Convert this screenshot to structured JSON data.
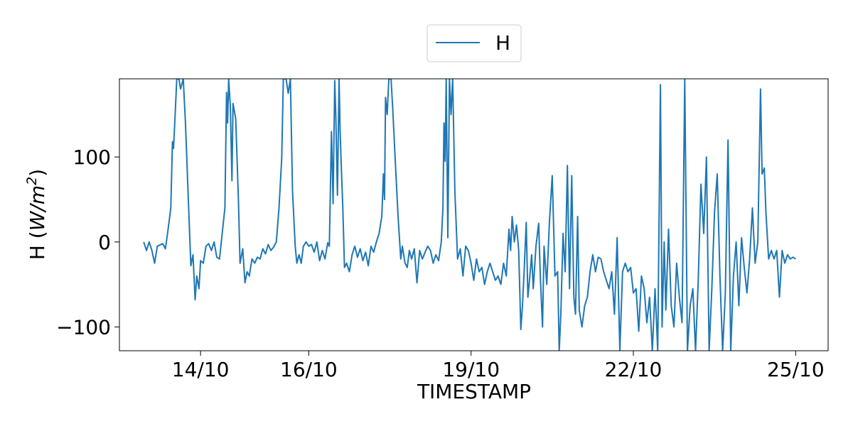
{
  "chart_data": {
    "type": "line",
    "title": "",
    "xlabel": "TIMESTAMP",
    "ylabel": "H (W/m²)",
    "ylabel_parts": {
      "prefix": "H (",
      "var": "W/m",
      "sup": "2",
      "suffix": ")"
    },
    "xlim": [
      12.5,
      25.6
    ],
    "ylim": [
      -128,
      192
    ],
    "x_ticks": [
      {
        "label": "14/10",
        "value": 14
      },
      {
        "label": "16/10",
        "value": 16
      },
      {
        "label": "19/10",
        "value": 19
      },
      {
        "label": "22/10",
        "value": 22
      },
      {
        "label": "25/10",
        "value": 25
      }
    ],
    "y_ticks": [
      {
        "label": "100",
        "value": 100
      },
      {
        "label": "0",
        "value": 0
      },
      {
        "label": "−100",
        "value": -100
      }
    ],
    "grid": false,
    "legend": {
      "position": "top-center",
      "entries": [
        "H"
      ]
    },
    "series": [
      {
        "name": "H",
        "color": "#1f77b4",
        "x_unit": "day of October 2023 (fractional)",
        "points": [
          [
            12.95,
            0
          ],
          [
            13.0,
            -10
          ],
          [
            13.05,
            0
          ],
          [
            13.1,
            -10
          ],
          [
            13.15,
            -25
          ],
          [
            13.2,
            -5
          ],
          [
            13.3,
            -2
          ],
          [
            13.35,
            -8
          ],
          [
            13.4,
            15
          ],
          [
            13.45,
            40
          ],
          [
            13.48,
            118
          ],
          [
            13.5,
            110
          ],
          [
            13.53,
            150
          ],
          [
            13.56,
            192
          ],
          [
            13.6,
            192
          ],
          [
            13.63,
            180
          ],
          [
            13.68,
            192
          ],
          [
            13.72,
            140
          ],
          [
            13.78,
            40
          ],
          [
            13.82,
            -28
          ],
          [
            13.86,
            -15
          ],
          [
            13.9,
            -68
          ],
          [
            13.93,
            -40
          ],
          [
            13.97,
            -55
          ],
          [
            14.0,
            -22
          ],
          [
            14.05,
            -25
          ],
          [
            14.1,
            -5
          ],
          [
            14.15,
            -2
          ],
          [
            14.2,
            -10
          ],
          [
            14.25,
            0
          ],
          [
            14.3,
            -18
          ],
          [
            14.35,
            -20
          ],
          [
            14.4,
            10
          ],
          [
            14.45,
            40
          ],
          [
            14.48,
            176
          ],
          [
            14.5,
            140
          ],
          [
            14.52,
            192
          ],
          [
            14.55,
            160
          ],
          [
            14.58,
            72
          ],
          [
            14.6,
            163
          ],
          [
            14.65,
            145
          ],
          [
            14.7,
            50
          ],
          [
            14.73,
            -25
          ],
          [
            14.78,
            -8
          ],
          [
            14.82,
            -48
          ],
          [
            14.86,
            -35
          ],
          [
            14.9,
            -40
          ],
          [
            14.95,
            -20
          ],
          [
            15.0,
            -25
          ],
          [
            15.05,
            -18
          ],
          [
            15.1,
            -20
          ],
          [
            15.15,
            -8
          ],
          [
            15.2,
            -14
          ],
          [
            15.25,
            -3
          ],
          [
            15.3,
            -10
          ],
          [
            15.35,
            -6
          ],
          [
            15.4,
            0
          ],
          [
            15.45,
            40
          ],
          [
            15.5,
            98
          ],
          [
            15.53,
            192
          ],
          [
            15.58,
            192
          ],
          [
            15.62,
            175
          ],
          [
            15.66,
            192
          ],
          [
            15.7,
            60
          ],
          [
            15.75,
            -5
          ],
          [
            15.78,
            -25
          ],
          [
            15.82,
            -15
          ],
          [
            15.86,
            -25
          ],
          [
            15.9,
            -5
          ],
          [
            15.95,
            0
          ],
          [
            16.0,
            -5
          ],
          [
            16.05,
            -3
          ],
          [
            16.1,
            -12
          ],
          [
            16.15,
            0
          ],
          [
            16.2,
            -22
          ],
          [
            16.25,
            -10
          ],
          [
            16.3,
            -20
          ],
          [
            16.35,
            -1
          ],
          [
            16.38,
            -5
          ],
          [
            16.42,
            130
          ],
          [
            16.45,
            45
          ],
          [
            16.48,
            190
          ],
          [
            16.5,
            150
          ],
          [
            16.53,
            55
          ],
          [
            16.56,
            192
          ],
          [
            16.58,
            130
          ],
          [
            16.6,
            92
          ],
          [
            16.63,
            40
          ],
          [
            16.66,
            -30
          ],
          [
            16.7,
            -25
          ],
          [
            16.75,
            -35
          ],
          [
            16.8,
            -15
          ],
          [
            16.85,
            -5
          ],
          [
            16.9,
            -18
          ],
          [
            16.95,
            -8
          ],
          [
            17.0,
            -22
          ],
          [
            17.05,
            -12
          ],
          [
            17.1,
            -28
          ],
          [
            17.15,
            -5
          ],
          [
            17.2,
            -12
          ],
          [
            17.25,
            0
          ],
          [
            17.3,
            10
          ],
          [
            17.35,
            30
          ],
          [
            17.38,
            80
          ],
          [
            17.4,
            50
          ],
          [
            17.42,
            170
          ],
          [
            17.45,
            150
          ],
          [
            17.48,
            192
          ],
          [
            17.52,
            192
          ],
          [
            17.55,
            160
          ],
          [
            17.6,
            95
          ],
          [
            17.65,
            30
          ],
          [
            17.7,
            -20
          ],
          [
            17.73,
            -5
          ],
          [
            17.78,
            -25
          ],
          [
            17.82,
            -30
          ],
          [
            17.86,
            -10
          ],
          [
            17.9,
            -20
          ],
          [
            17.95,
            -8
          ],
          [
            18.0,
            -48
          ],
          [
            18.05,
            -10
          ],
          [
            18.1,
            -20
          ],
          [
            18.15,
            -12
          ],
          [
            18.2,
            -5
          ],
          [
            18.25,
            -10
          ],
          [
            18.3,
            -25
          ],
          [
            18.35,
            -15
          ],
          [
            18.4,
            -22
          ],
          [
            18.45,
            0
          ],
          [
            18.48,
            40
          ],
          [
            18.5,
            140
          ],
          [
            18.52,
            95
          ],
          [
            18.54,
            192
          ],
          [
            18.57,
            5
          ],
          [
            18.6,
            192
          ],
          [
            18.63,
            150
          ],
          [
            18.66,
            192
          ],
          [
            18.7,
            60
          ],
          [
            18.75,
            -20
          ],
          [
            18.8,
            -8
          ],
          [
            18.85,
            -40
          ],
          [
            18.9,
            -5
          ],
          [
            18.95,
            -10
          ],
          [
            19.0,
            -25
          ],
          [
            19.05,
            -45
          ],
          [
            19.1,
            -20
          ],
          [
            19.15,
            -35
          ],
          [
            19.2,
            -30
          ],
          [
            19.25,
            -50
          ],
          [
            19.3,
            -35
          ],
          [
            19.35,
            -25
          ],
          [
            19.4,
            -35
          ],
          [
            19.45,
            -45
          ],
          [
            19.5,
            -40
          ],
          [
            19.55,
            -50
          ],
          [
            19.6,
            -25
          ],
          [
            19.65,
            -40
          ],
          [
            19.7,
            15
          ],
          [
            19.73,
            -10
          ],
          [
            19.76,
            30
          ],
          [
            19.8,
            0
          ],
          [
            19.84,
            20
          ],
          [
            19.88,
            -10
          ],
          [
            19.92,
            -103
          ],
          [
            19.95,
            -75
          ],
          [
            19.98,
            -35
          ],
          [
            20.02,
            23
          ],
          [
            20.05,
            -65
          ],
          [
            20.08,
            -45
          ],
          [
            20.12,
            -15
          ],
          [
            20.15,
            -55
          ],
          [
            20.2,
            -5
          ],
          [
            20.25,
            22
          ],
          [
            20.28,
            -40
          ],
          [
            20.32,
            -100
          ],
          [
            20.35,
            -5
          ],
          [
            20.4,
            -50
          ],
          [
            20.45,
            25
          ],
          [
            20.5,
            78
          ],
          [
            20.55,
            -40
          ],
          [
            20.6,
            -35
          ],
          [
            20.63,
            -128
          ],
          [
            20.66,
            -85
          ],
          [
            20.7,
            10
          ],
          [
            20.74,
            -35
          ],
          [
            20.78,
            90
          ],
          [
            20.82,
            -55
          ],
          [
            20.86,
            78
          ],
          [
            20.9,
            -65
          ],
          [
            20.93,
            -85
          ],
          [
            20.97,
            30
          ],
          [
            21.0,
            -80
          ],
          [
            21.05,
            -100
          ],
          [
            21.1,
            -75
          ],
          [
            21.15,
            -65
          ],
          [
            21.2,
            -35
          ],
          [
            21.25,
            -15
          ],
          [
            21.3,
            -35
          ],
          [
            21.35,
            -18
          ],
          [
            21.4,
            -20
          ],
          [
            21.45,
            -35
          ],
          [
            21.5,
            -45
          ],
          [
            21.55,
            -55
          ],
          [
            21.6,
            -35
          ],
          [
            21.65,
            -85
          ],
          [
            21.7,
            5
          ],
          [
            21.75,
            -128
          ],
          [
            21.8,
            -35
          ],
          [
            21.85,
            -25
          ],
          [
            21.9,
            -35
          ],
          [
            21.95,
            -30
          ],
          [
            22.0,
            -60
          ],
          [
            22.05,
            -55
          ],
          [
            22.1,
            -105
          ],
          [
            22.15,
            -40
          ],
          [
            22.2,
            -55
          ],
          [
            22.25,
            -95
          ],
          [
            22.3,
            -65
          ],
          [
            22.35,
            -128
          ],
          [
            22.4,
            -55
          ],
          [
            22.45,
            -128
          ],
          [
            22.5,
            185
          ],
          [
            22.53,
            -100
          ],
          [
            22.57,
            0
          ],
          [
            22.6,
            -80
          ],
          [
            22.65,
            15
          ],
          [
            22.7,
            -75
          ],
          [
            22.75,
            -100
          ],
          [
            22.8,
            -25
          ],
          [
            22.85,
            -65
          ],
          [
            22.9,
            -95
          ],
          [
            22.95,
            192
          ],
          [
            23.0,
            -128
          ],
          [
            23.05,
            -75
          ],
          [
            23.1,
            -55
          ],
          [
            23.15,
            -128
          ],
          [
            23.2,
            -45
          ],
          [
            23.25,
            68
          ],
          [
            23.3,
            10
          ],
          [
            23.35,
            100
          ],
          [
            23.4,
            -128
          ],
          [
            23.45,
            -55
          ],
          [
            23.5,
            35
          ],
          [
            23.55,
            80
          ],
          [
            23.6,
            -40
          ],
          [
            23.65,
            -128
          ],
          [
            23.7,
            -60
          ],
          [
            23.75,
            120
          ],
          [
            23.8,
            -128
          ],
          [
            23.85,
            -40
          ],
          [
            23.9,
            0
          ],
          [
            23.95,
            -75
          ],
          [
            24.0,
            5
          ],
          [
            24.05,
            -30
          ],
          [
            24.1,
            -60
          ],
          [
            24.15,
            -20
          ],
          [
            24.2,
            40
          ],
          [
            24.25,
            -25
          ],
          [
            24.3,
            0
          ],
          [
            24.35,
            180
          ],
          [
            24.38,
            80
          ],
          [
            24.42,
            87
          ],
          [
            24.45,
            35
          ],
          [
            24.5,
            -20
          ],
          [
            24.55,
            -10
          ],
          [
            24.6,
            -20
          ],
          [
            24.65,
            -10
          ],
          [
            24.7,
            -65
          ],
          [
            24.75,
            -10
          ],
          [
            24.8,
            -25
          ],
          [
            24.85,
            -15
          ],
          [
            24.9,
            -20
          ],
          [
            24.95,
            -18
          ],
          [
            25.0,
            -20
          ]
        ]
      }
    ]
  }
}
